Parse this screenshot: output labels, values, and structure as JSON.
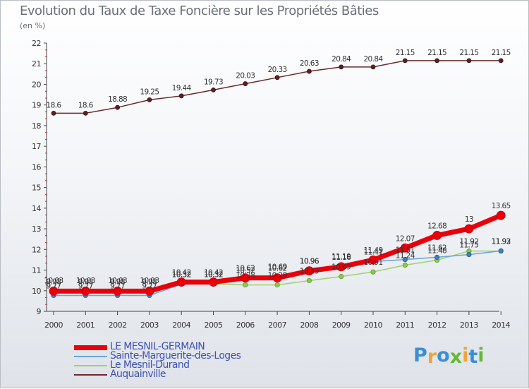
{
  "header": {
    "title": "Evolution du Taux de Taxe Foncière sur les Propriétés Bâties",
    "unit": "(en %)"
  },
  "logo": {
    "text": "Proxiti",
    "colors": [
      "#3b8ed8",
      "#f2a23a",
      "#3b8ed8",
      "#66b933",
      "#f2a23a",
      "#3b8ed8",
      "#66b933"
    ]
  },
  "chart_data": {
    "type": "line",
    "title": "Evolution du Taux de Taxe Foncière sur les Propriétés Bâties",
    "ylabel": "(en %)",
    "xlabel": "",
    "x": [
      "2000",
      "2001",
      "2002",
      "2003",
      "2004",
      "2005",
      "2006",
      "2007",
      "2008",
      "2009",
      "2010",
      "2011",
      "2012",
      "2013",
      "2014"
    ],
    "ylim": [
      9,
      22
    ],
    "yticks": [
      "9",
      "10",
      "11",
      "12",
      "13",
      "14",
      "15",
      "16",
      "17",
      "18",
      "19",
      "20",
      "21",
      "22"
    ],
    "grid": false,
    "legend_position": "bottom-left",
    "series": [
      {
        "name": "LE MESNIL-GERMAIN",
        "color": "#e8000b",
        "values": [
          9.98,
          9.98,
          9.98,
          9.98,
          10.42,
          10.42,
          10.62,
          10.62,
          10.96,
          11.16,
          11.49,
          12.07,
          12.68,
          13,
          13.65
        ],
        "labels": [
          "9.98",
          "9.98",
          "9.98",
          "9.98",
          "10.42",
          "10.42",
          "10.62",
          "10.62",
          "10.96",
          "11.16",
          "11.49",
          "12.07",
          "12.68",
          "13",
          "13.65"
        ]
      },
      {
        "name": "Sainte-Marguerite-des-Loges",
        "color": "#6aa3d8",
        "values": [
          9.77,
          9.77,
          9.77,
          9.77,
          10.32,
          10.32,
          10.52,
          10.69,
          10.96,
          11.19,
          11.41,
          11.51,
          11.62,
          11.75,
          11.93
        ],
        "labels": [
          "9.77",
          "9.77",
          "9.77",
          "9.77",
          "10.32",
          "10.32",
          "10.52",
          "10.69",
          "10.96",
          "11.19",
          "11.41",
          "11.51",
          "11.62",
          "11.75",
          "11.93"
        ]
      },
      {
        "name": "Le Mesnil-Durand",
        "color": "#9ed26a",
        "values": [
          10.03,
          10.03,
          10.03,
          10.03,
          10.32,
          10.32,
          10.28,
          10.28,
          10.49,
          10.69,
          10.91,
          11.24,
          11.48,
          11.92,
          11.92
        ],
        "labels": [
          "10.03",
          "10.03",
          "10.03",
          "10.03",
          "10.32",
          "10.32",
          "10.28",
          "10.28",
          "10.49",
          "10.69",
          "10.91",
          "11.24",
          "11.48",
          "11.92",
          "11.92"
        ]
      },
      {
        "name": "Auquainville",
        "color": "#6b2b2b",
        "values": [
          18.6,
          18.6,
          18.88,
          19.25,
          19.44,
          19.73,
          20.03,
          20.33,
          20.63,
          20.84,
          20.84,
          21.15,
          21.15,
          21.15,
          21.15
        ],
        "labels": [
          "18.6",
          "18.6",
          "18.88",
          "19.25",
          "19.44",
          "19.73",
          "20.03",
          "20.33",
          "20.63",
          "20.84",
          "20.84",
          "21.15",
          "21.15",
          "21.15",
          "21.15"
        ]
      }
    ]
  }
}
